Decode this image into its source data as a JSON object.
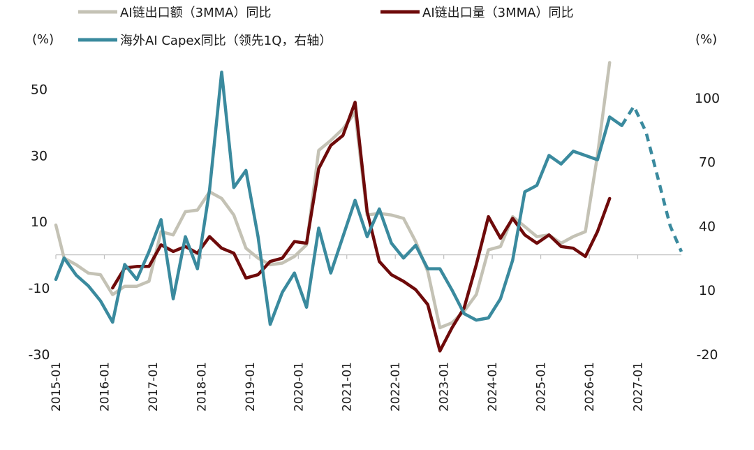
{
  "chart_data": {
    "type": "line",
    "title": "",
    "left_axis": {
      "unit_label": "(%)",
      "ylim": [
        -30,
        60
      ],
      "ticks": [
        50,
        30,
        10,
        -10,
        -30
      ]
    },
    "right_axis": {
      "unit_label": "(%)",
      "ylim": [
        -20,
        115
      ],
      "ticks": [
        100,
        70,
        40,
        10,
        -20
      ]
    },
    "x_axis": {
      "ticks": [
        "2015-01",
        "2016-01",
        "2017-01",
        "2018-01",
        "2019-01",
        "2020-01",
        "2021-01",
        "2022-01",
        "2023-01",
        "2024-01",
        "2025-01",
        "2026-01",
        "2027-01"
      ],
      "start": 2015.0,
      "end": 2027.9,
      "zero_line_on": "left"
    },
    "legend_placement": "top",
    "series": [
      {
        "name": "AI链出口额（3MMA）同比",
        "color": "#c4c2b5",
        "axis": "left",
        "points": [
          [
            2015.0,
            9
          ],
          [
            2015.17,
            -1
          ],
          [
            2015.42,
            -3
          ],
          [
            2015.67,
            -5.5
          ],
          [
            2015.92,
            -6
          ],
          [
            2016.17,
            -12
          ],
          [
            2016.42,
            -9.5
          ],
          [
            2016.67,
            -9.5
          ],
          [
            2016.92,
            -8
          ],
          [
            2017.17,
            7
          ],
          [
            2017.42,
            6
          ],
          [
            2017.67,
            13
          ],
          [
            2017.92,
            13.5
          ],
          [
            2018.17,
            19
          ],
          [
            2018.42,
            17
          ],
          [
            2018.67,
            12
          ],
          [
            2018.92,
            2
          ],
          [
            2019.17,
            -1
          ],
          [
            2019.42,
            -3
          ],
          [
            2019.67,
            -2.5
          ],
          [
            2019.92,
            -0.5
          ],
          [
            2020.17,
            3
          ],
          [
            2020.42,
            31.5
          ],
          [
            2020.67,
            34.5
          ],
          [
            2020.92,
            38
          ],
          [
            2021.17,
            43
          ],
          [
            2021.42,
            12
          ],
          [
            2021.67,
            12.5
          ],
          [
            2021.92,
            12
          ],
          [
            2022.17,
            11
          ],
          [
            2022.42,
            4
          ],
          [
            2022.67,
            -5
          ],
          [
            2022.92,
            -22
          ],
          [
            2023.17,
            -20.5
          ],
          [
            2023.42,
            -17
          ],
          [
            2023.67,
            -12
          ],
          [
            2023.92,
            1.5
          ],
          [
            2024.17,
            2.5
          ],
          [
            2024.42,
            11.5
          ],
          [
            2024.67,
            8.5
          ],
          [
            2024.92,
            5.5
          ],
          [
            2025.17,
            6
          ],
          [
            2025.42,
            3.5
          ],
          [
            2025.67,
            5.5
          ],
          [
            2025.92,
            7
          ],
          [
            2026.17,
            30
          ],
          [
            2026.42,
            58
          ]
        ]
      },
      {
        "name": "AI链出口量（3MMA）同比",
        "color": "#6e0a0a",
        "axis": "left",
        "points": [
          [
            2016.17,
            -10
          ],
          [
            2016.42,
            -4
          ],
          [
            2016.67,
            -3.5
          ],
          [
            2016.92,
            -3.5
          ],
          [
            2017.17,
            3
          ],
          [
            2017.42,
            1
          ],
          [
            2017.67,
            2.5
          ],
          [
            2017.92,
            0.5
          ],
          [
            2018.17,
            5.5
          ],
          [
            2018.42,
            2
          ],
          [
            2018.67,
            0.5
          ],
          [
            2018.92,
            -7
          ],
          [
            2019.17,
            -6
          ],
          [
            2019.42,
            -2
          ],
          [
            2019.67,
            -1
          ],
          [
            2019.92,
            4
          ],
          [
            2020.17,
            3.5
          ],
          [
            2020.42,
            26
          ],
          [
            2020.67,
            33
          ],
          [
            2020.92,
            36
          ],
          [
            2021.17,
            46
          ],
          [
            2021.42,
            13
          ],
          [
            2021.67,
            -2
          ],
          [
            2021.92,
            -6
          ],
          [
            2022.17,
            -8
          ],
          [
            2022.42,
            -10.5
          ],
          [
            2022.67,
            -15
          ],
          [
            2022.92,
            -29
          ],
          [
            2023.17,
            -22
          ],
          [
            2023.42,
            -16
          ],
          [
            2023.67,
            -3
          ],
          [
            2023.92,
            11.5
          ],
          [
            2024.17,
            5
          ],
          [
            2024.42,
            11
          ],
          [
            2024.67,
            6
          ],
          [
            2024.92,
            3.5
          ],
          [
            2025.17,
            6
          ],
          [
            2025.42,
            2.5
          ],
          [
            2025.67,
            2
          ],
          [
            2025.92,
            -0.5
          ],
          [
            2026.17,
            7
          ],
          [
            2026.42,
            17
          ]
        ]
      },
      {
        "name": "海外AI Capex同比（领先1Q，右轴）",
        "color": "#3a8a9e",
        "axis": "right",
        "points": [
          [
            2015.0,
            15
          ],
          [
            2015.17,
            25
          ],
          [
            2015.42,
            17
          ],
          [
            2015.67,
            12
          ],
          [
            2015.92,
            5
          ],
          [
            2016.17,
            -5
          ],
          [
            2016.42,
            22
          ],
          [
            2016.67,
            15
          ],
          [
            2016.92,
            28
          ],
          [
            2017.17,
            43
          ],
          [
            2017.42,
            6
          ],
          [
            2017.67,
            35
          ],
          [
            2017.92,
            20
          ],
          [
            2018.17,
            57
          ],
          [
            2018.42,
            112
          ],
          [
            2018.67,
            58
          ],
          [
            2018.92,
            66
          ],
          [
            2019.17,
            35
          ],
          [
            2019.42,
            -6
          ],
          [
            2019.67,
            9
          ],
          [
            2019.92,
            18
          ],
          [
            2020.17,
            2
          ],
          [
            2020.42,
            39
          ],
          [
            2020.67,
            18
          ],
          [
            2020.92,
            35
          ],
          [
            2021.17,
            52
          ],
          [
            2021.42,
            35
          ],
          [
            2021.67,
            48
          ],
          [
            2021.92,
            32
          ],
          [
            2022.17,
            25
          ],
          [
            2022.42,
            31
          ],
          [
            2022.67,
            20
          ],
          [
            2022.92,
            20
          ],
          [
            2023.17,
            10
          ],
          [
            2023.42,
            -1
          ],
          [
            2023.67,
            -4
          ],
          [
            2023.92,
            -3
          ],
          [
            2024.17,
            6
          ],
          [
            2024.42,
            24
          ],
          [
            2024.67,
            56
          ],
          [
            2024.92,
            59
          ],
          [
            2025.17,
            73
          ],
          [
            2025.42,
            69
          ],
          [
            2025.67,
            75
          ],
          [
            2025.92,
            73
          ],
          [
            2026.17,
            71
          ],
          [
            2026.42,
            91
          ],
          [
            2026.67,
            87
          ]
        ],
        "forecast_points": [
          [
            2026.67,
            87
          ],
          [
            2026.92,
            96
          ],
          [
            2027.17,
            84
          ],
          [
            2027.42,
            62
          ],
          [
            2027.67,
            40
          ],
          [
            2027.9,
            28
          ]
        ]
      }
    ]
  }
}
